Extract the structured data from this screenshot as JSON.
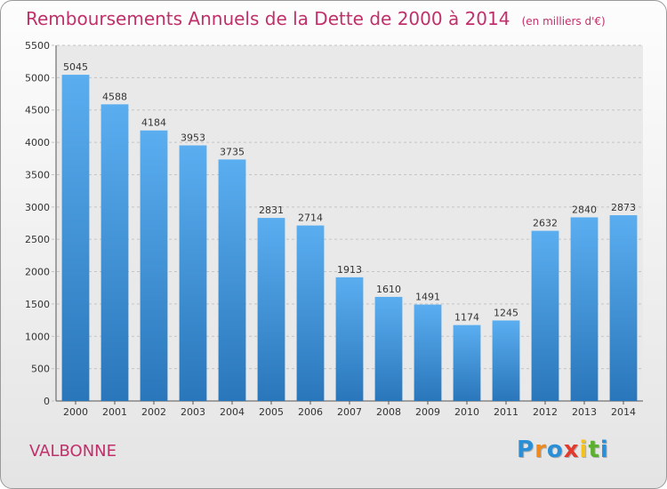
{
  "title": {
    "main": "Remboursements Annuels de la Dette de 2000 à 2014",
    "unit": "(en milliers d'€)"
  },
  "commune": "VALBONNE",
  "logo": {
    "letters": [
      "P",
      "r",
      "o",
      "x",
      "i",
      "t",
      "i"
    ],
    "colors": [
      "#2a8fd6",
      "#f08a1c",
      "#2a8fd6",
      "#e33a2e",
      "#f5c21b",
      "#5bb02f",
      "#2a8fd6"
    ]
  },
  "colors": {
    "bar_top": "#5aaef0",
    "bar_bottom": "#2a76bb",
    "title": "#c0306b"
  },
  "chart_data": {
    "type": "bar",
    "categories": [
      "2000",
      "2001",
      "2002",
      "2003",
      "2004",
      "2005",
      "2006",
      "2007",
      "2008",
      "2009",
      "2010",
      "2011",
      "2012",
      "2013",
      "2014"
    ],
    "values": [
      5045,
      4588,
      4184,
      3953,
      3735,
      2831,
      2714,
      1913,
      1610,
      1491,
      1174,
      1245,
      2632,
      2840,
      2873
    ],
    "ylim": [
      0,
      5500
    ],
    "yticks": [
      "0",
      "500",
      "1000",
      "1500",
      "2000",
      "2500",
      "3000",
      "3500",
      "4000",
      "4500",
      "5000",
      "5500"
    ],
    "grid": true
  }
}
